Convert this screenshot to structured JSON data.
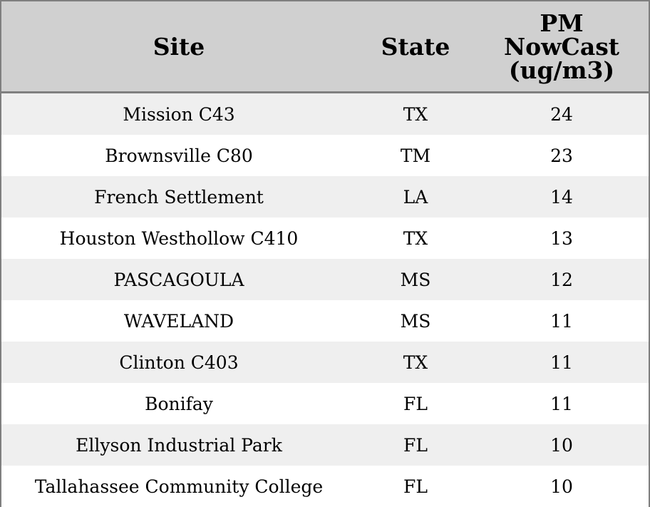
{
  "table": {
    "header": [
      "Site",
      "State",
      "PM NowCast (ug/m3)"
    ],
    "rows": [
      [
        "Mission C43",
        "TX",
        24
      ],
      [
        "Brownsville C80",
        "TM",
        23
      ],
      [
        "French Settlement",
        "LA",
        14
      ],
      [
        "Houston Westhollow C410",
        "TX",
        13
      ],
      [
        "PASCAGOULA",
        "MS",
        12
      ],
      [
        "WAVELAND",
        "MS",
        11
      ],
      [
        "Clinton C403",
        "TX",
        11
      ],
      [
        "Bonifay",
        "FL",
        11
      ],
      [
        "Ellyson Industrial Park",
        "FL",
        10
      ],
      [
        "Tallahassee Community College",
        "FL",
        10
      ]
    ]
  }
}
